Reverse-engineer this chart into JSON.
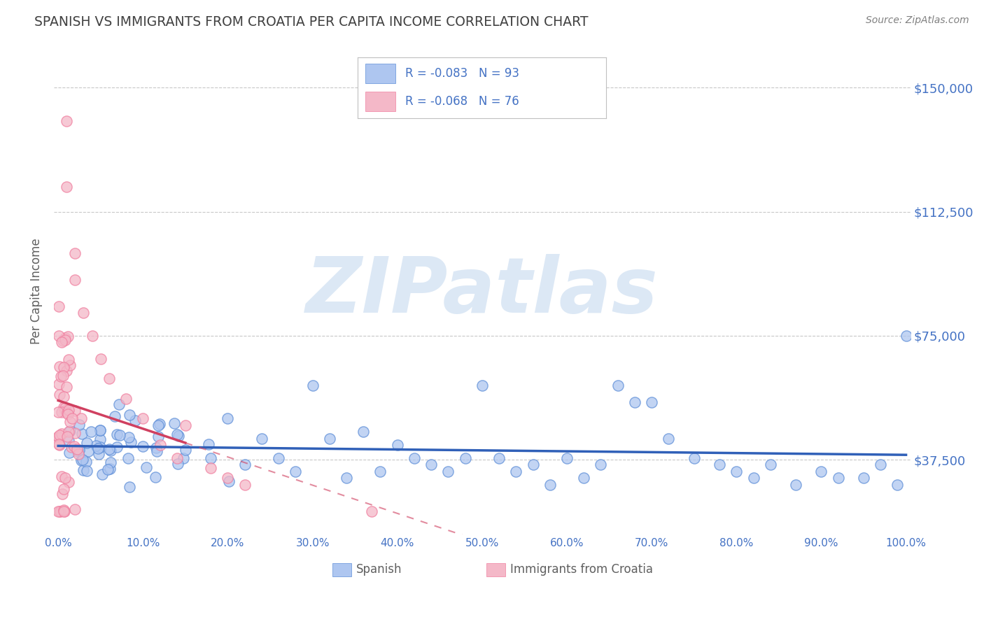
{
  "title": "SPANISH VS IMMIGRANTS FROM CROATIA PER CAPITA INCOME CORRELATION CHART",
  "source": "Source: ZipAtlas.com",
  "ylabel": "Per Capita Income",
  "ylim": [
    15000,
    162000
  ],
  "yticks": [
    37500,
    75000,
    112500,
    150000
  ],
  "ytick_labels": [
    "$37,500",
    "$75,000",
    "$112,500",
    "$150,000"
  ],
  "xtick_labels": [
    "0.0%",
    "10.0%",
    "20.0%",
    "30.0%",
    "40.0%",
    "50.0%",
    "60.0%",
    "70.0%",
    "80.0%",
    "90.0%",
    "100.0%"
  ],
  "xticks": [
    0,
    0.1,
    0.2,
    0.3,
    0.4,
    0.5,
    0.6,
    0.7,
    0.8,
    0.9,
    1.0
  ],
  "blue_color": "#6090d8",
  "pink_color": "#f080a0",
  "blue_fill": "#aec6f0",
  "pink_fill": "#f4b8c8",
  "blue_line_color": "#3060b8",
  "pink_line_color": "#d04060",
  "watermark": "ZIPatlas",
  "watermark_color": "#dce8f5",
  "background_color": "#ffffff",
  "grid_color": "#c8c8c8",
  "title_color": "#404040",
  "axis_label_color": "#606060",
  "tick_label_color": "#4472c4",
  "source_color": "#808080",
  "legend_R1": "R = -0.083",
  "legend_N1": "N = 93",
  "legend_R2": "R = -0.068",
  "legend_N2": "N = 76",
  "legend_label1": "Spanish",
  "legend_label2": "Immigrants from Croatia"
}
